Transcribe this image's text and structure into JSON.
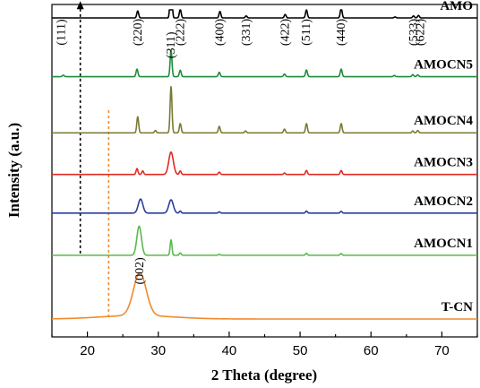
{
  "chart_data": {
    "type": "line",
    "xlabel": "2 Theta (degree)",
    "ylabel": "Intensity (a.u.)",
    "xlim": [
      15,
      75
    ],
    "xticks": [
      20,
      30,
      40,
      50,
      60,
      70
    ],
    "y_ticks_shown": false,
    "legend": "labels at right end of each trace",
    "series": [
      {
        "name": "AMO",
        "color": "#000000",
        "offset": 6.0,
        "height": 1.0,
        "baseline_amp": 0.0,
        "peaks": [
          [
            27.1,
            0.14
          ],
          [
            31.8,
            1.0
          ],
          [
            33.1,
            0.17
          ],
          [
            38.7,
            0.13
          ],
          [
            42.4,
            0.04
          ],
          [
            47.9,
            0.07
          ],
          [
            50.9,
            0.16
          ],
          [
            55.8,
            0.2
          ],
          [
            63.4,
            0.02
          ],
          [
            66.0,
            0.04
          ],
          [
            66.7,
            0.05
          ]
        ]
      },
      {
        "name": "AMOCN5",
        "color": "#1e8c3a",
        "offset": 4.83,
        "height": 0.58,
        "baseline_amp": 0.0,
        "peaks": [
          [
            16.6,
            0.05
          ],
          [
            27.0,
            0.26
          ],
          [
            31.8,
            0.9
          ],
          [
            33.1,
            0.22
          ],
          [
            38.6,
            0.15
          ],
          [
            47.8,
            0.09
          ],
          [
            50.9,
            0.23
          ],
          [
            55.8,
            0.26
          ],
          [
            63.3,
            0.04
          ],
          [
            65.9,
            0.07
          ],
          [
            66.6,
            0.06
          ]
        ]
      },
      {
        "name": "AMOCN4",
        "color": "#7a7a34",
        "offset": 3.71,
        "height": 0.92,
        "baseline_amp": 0.0,
        "peaks": [
          [
            27.1,
            0.35
          ],
          [
            29.6,
            0.05
          ],
          [
            31.8,
            1.0
          ],
          [
            33.1,
            0.2
          ],
          [
            38.6,
            0.14
          ],
          [
            42.3,
            0.04
          ],
          [
            47.8,
            0.08
          ],
          [
            50.9,
            0.2
          ],
          [
            55.8,
            0.2
          ],
          [
            65.9,
            0.04
          ],
          [
            66.6,
            0.05
          ]
        ]
      },
      {
        "name": "AMOCN3",
        "color": "#e02a24",
        "offset": 2.88,
        "height": 0.47,
        "baseline_amp": 0.0,
        "peaks": [
          [
            27.0,
            0.25
          ],
          [
            27.8,
            0.15
          ],
          [
            31.8,
            0.95
          ],
          [
            33.1,
            0.15
          ],
          [
            38.6,
            0.1
          ],
          [
            47.8,
            0.06
          ],
          [
            50.9,
            0.17
          ],
          [
            55.8,
            0.17
          ]
        ]
      },
      {
        "name": "AMOCN2",
        "color": "#2b3d9a",
        "offset": 2.11,
        "height": 0.51,
        "baseline_amp": 0.0,
        "peaks": [
          [
            27.5,
            0.55
          ],
          [
            31.8,
            0.52
          ],
          [
            33.1,
            0.08
          ],
          [
            38.6,
            0.05
          ],
          [
            50.9,
            0.08
          ],
          [
            55.8,
            0.07
          ]
        ]
      },
      {
        "name": "AMOCN1",
        "color": "#59b94e",
        "offset": 1.27,
        "height": 0.68,
        "baseline_amp": 0.0,
        "peaks": [
          [
            27.3,
            0.85
          ],
          [
            31.8,
            0.45
          ],
          [
            33.1,
            0.07
          ],
          [
            38.6,
            0.03
          ],
          [
            50.9,
            0.06
          ],
          [
            55.8,
            0.05
          ]
        ]
      },
      {
        "name": "T-CN",
        "color": "#f08a2e",
        "offset": 0.0,
        "height": 1.0,
        "baseline_amp": 0.07,
        "peaks": [
          [
            13.0,
            0.05
          ],
          [
            27.4,
            0.85
          ]
        ]
      }
    ],
    "reference_lines": [
      {
        "x": 19.0,
        "from_series": "AMOCN1",
        "to_series": "AMO",
        "color": "#000000",
        "arrow": true
      },
      {
        "x": 23.0,
        "from_series": "T-CN",
        "to_series": "AMOCN4",
        "color": "#f08a2e",
        "arrow": false
      }
    ],
    "annotations": [
      {
        "text": "(111)",
        "x": 16.3,
        "series": "AMO",
        "color": "#000000"
      },
      {
        "text": "(220)",
        "x": 27.1,
        "series": "AMO",
        "color": "#000000"
      },
      {
        "text": "(222)",
        "x": 33.1,
        "series": "AMO",
        "color": "#000000"
      },
      {
        "text": "(400)",
        "x": 38.7,
        "series": "AMO",
        "color": "#000000"
      },
      {
        "text": "(331)",
        "x": 42.4,
        "series": "AMO",
        "color": "#000000"
      },
      {
        "text": "(422)",
        "x": 47.9,
        "series": "AMO",
        "color": "#000000"
      },
      {
        "text": "(511)",
        "x": 50.9,
        "series": "AMO",
        "color": "#000000"
      },
      {
        "text": "(440)",
        "x": 55.8,
        "series": "AMO",
        "color": "#000000"
      },
      {
        "text": "(533)",
        "x": 66.0,
        "series": "AMO",
        "color": "#000000"
      },
      {
        "text": "(622)",
        "x": 67.0,
        "series": "AMO",
        "color": "#000000"
      },
      {
        "text": "(311)",
        "x": 31.8,
        "series": "AMOCN5",
        "color": "#000000"
      },
      {
        "text": "(002)",
        "x": 27.4,
        "series": "T-CN",
        "color": "#000000"
      }
    ]
  }
}
